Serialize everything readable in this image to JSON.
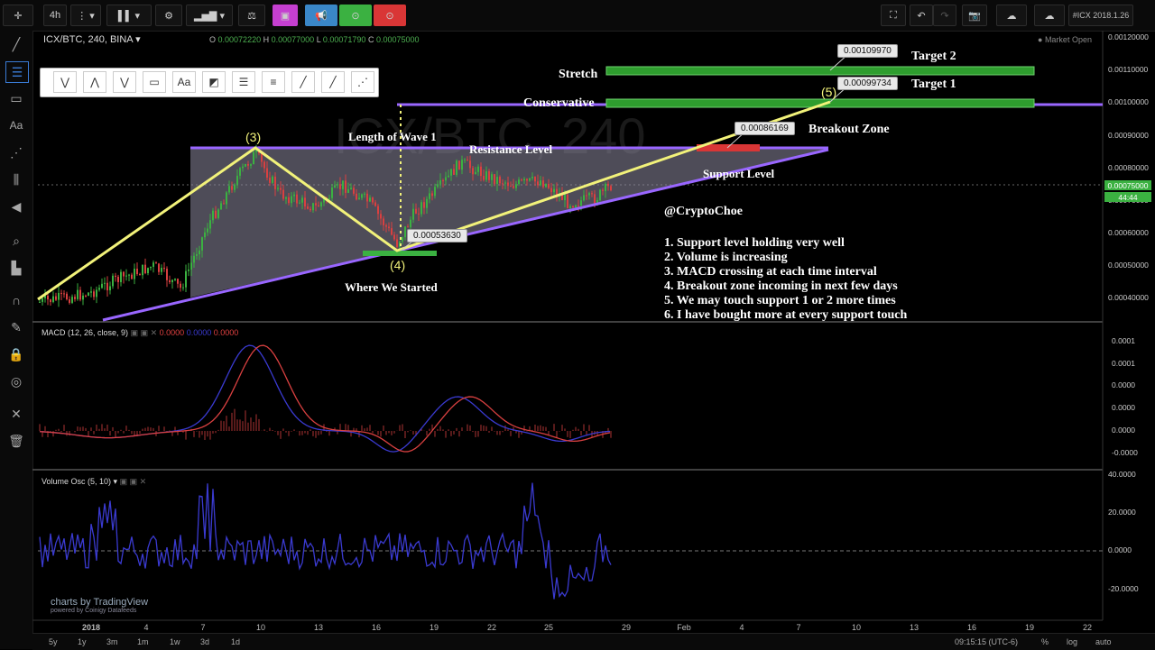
{
  "toolbar": {
    "interval": "4h",
    "symbol_badge": "#ICX 2018.1.26"
  },
  "legend": {
    "title": "ICX/BTC, 240, BINA",
    "o_label": "O",
    "o": "0.00072220",
    "h_label": "H",
    "h": "0.00077000",
    "l_label": "L",
    "l": "0.00071790",
    "c_label": "C",
    "c": "0.00075000",
    "market": "Market Open"
  },
  "macd": {
    "label": "MACD (12, 26, close, 9)",
    "v1": "0.0000",
    "v2": "0.0000",
    "v3": "0.0000"
  },
  "volosc": {
    "label": "Volume Osc (5, 10)"
  },
  "price_axis": [
    "0.00120000",
    "0.00110000",
    "0.00100000",
    "0.00090000",
    "0.00080000",
    "0.00070000",
    "0.00060000",
    "0.00050000",
    "0.00040000"
  ],
  "price_tag": "0.00075000",
  "time_tag": "44:44",
  "macd_axis": [
    "0.0001",
    "0.0001",
    "0.0000",
    "0.0000",
    "0.0000",
    "-0.0000"
  ],
  "vol_axis": [
    "40.0000",
    "20.0000",
    "0.0000",
    "-20.0000"
  ],
  "x_axis": [
    "2018",
    "4",
    "7",
    "10",
    "13",
    "16",
    "19",
    "22",
    "25",
    "29",
    "Feb",
    "4",
    "7",
    "10",
    "13",
    "16",
    "19",
    "22"
  ],
  "annotations": {
    "stretch": "Stretch",
    "target2": "Target 2",
    "target1": "Target 1",
    "conservative": "Conservative",
    "breakout": "Breakout Zone",
    "resistance": "Resistance Level",
    "length": "Length of Wave 1",
    "support": "Support Level",
    "where": "Where We Started",
    "handle": "@CryptoChoe",
    "w3": "(3)",
    "w4": "(4)",
    "w5": "(5)",
    "p_target2": "0.00109970",
    "p_target1": "0.00099734",
    "p_breakout": "0.00086169",
    "p_start": "0.00053630",
    "watermark": "ICX/BTC, 240"
  },
  "notes": [
    "1. Support level holding very well",
    "2. Volume is increasing",
    "3. MACD crossing at each time interval",
    "4. Breakout zone incoming in next few days",
    "5. We may touch support 1 or 2 more times",
    "6. I have bought more at every support touch"
  ],
  "bottom": {
    "ranges": [
      "5y",
      "1y",
      "3m",
      "1m",
      "1w",
      "3d",
      "1d"
    ],
    "time": "09:15:15 (UTC-6)",
    "pct": "%",
    "log": "log",
    "auto": "auto"
  },
  "branding": {
    "main": "charts by TradingView",
    "sub": "powered by Coinigy Datafeeds"
  },
  "colors": {
    "accent_yellow": "#f2f27a",
    "purple": "#9966ff",
    "green": "#3bb141",
    "red": "#e04040"
  }
}
